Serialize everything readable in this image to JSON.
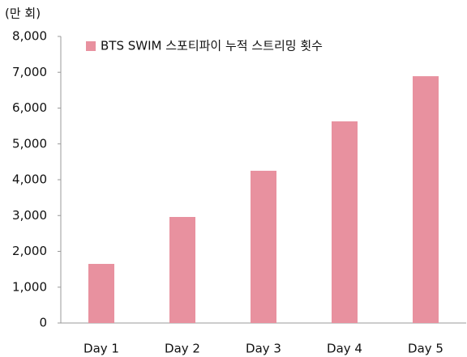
{
  "chart_data": {
    "type": "bar",
    "unit_label": "(만 회)",
    "categories": [
      "Day 1",
      "Day 2",
      "Day 3",
      "Day 4",
      "Day 5"
    ],
    "series": [
      {
        "name": "BTS SWIM 스포티파이 누적 스트리밍 횟수",
        "color": "#e8919f",
        "values": [
          1650,
          2960,
          4250,
          5630,
          6890
        ]
      }
    ],
    "ylim": [
      0,
      8000
    ],
    "yticks": [
      0,
      {
        "value": 1000,
        "label": "1,000"
      },
      {
        "value": 2000,
        "label": "2,000"
      },
      {
        "value": 3000,
        "label": "3,000"
      },
      {
        "value": 4000,
        "label": "4,000"
      },
      {
        "value": 5000,
        "label": "5,000"
      },
      {
        "value": 6000,
        "label": "6,000"
      },
      {
        "value": 7000,
        "label": "7,000"
      },
      {
        "value": 8000,
        "label": "8,000"
      }
    ],
    "legend": "upper left"
  }
}
